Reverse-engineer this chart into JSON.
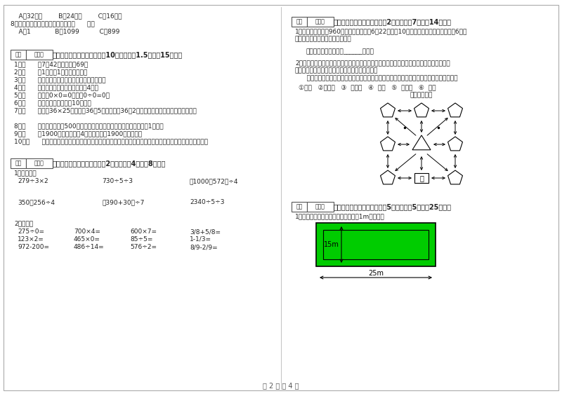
{
  "page_bg": "#ffffff",
  "page_width": 8.0,
  "page_height": 5.65,
  "left_col": {
    "top_items": [
      "    A．32厘米        B．24厘米        C．16厘米",
      "8．最小三位数和最大三位数的和是（      ）。",
      "    A．1            B．1099          C．899"
    ],
    "section3_title": "三、仔细推敲，正确判断（共10小题，每题1.5分，共15分）。",
    "section3_items": [
      "1．（      ）7个42相加的和是69。",
      "2．（      ）1吨铁与1吨棉花一样重。",
      "3．（      ）长方形的周长就是它四条边长度的和。",
      "4．（      ）正方形的周长是它的边长的4倍。",
      "5．（      ）因为0×0=0，所以0÷0=0。",
      "6．（      ）小明家客厅面积是10公顷。",
      "7．（      ）计算36×25时，先把36和5相乘，再把36和2相乘，最后把两次乘得的结果相加。",
      "8．（      ）小明家离学校500米，他每天上学、回家，一个来回一共要走1千米。",
      "9．（      ）1900年的年份数是4的倍数，所以1900年是闰年。",
      "10．（      ）用同一条铁丝先围成一个最大的正方形，再围成一个最大的长方形，长方形和正方形的周长相等。"
    ],
    "section4_title": "四、看清题目，细心计算（共2小题，每题4分，共8分）。",
    "section4_sub1": "1．脱式计算",
    "section4_calcs1": [
      "279÷3×2",
      "730÷5÷3",
      "（1000－572）÷4"
    ],
    "section4_calcs2": [
      "350－256÷4",
      "（390+30）÷7",
      "2340÷5÷3"
    ],
    "section4_sub2": "2．口算：",
    "section4_oral": [
      [
        "275÷0=",
        "700×4=",
        "600×7=",
        "3/8+5/8="
      ],
      [
        "123×2=",
        "465×0=",
        "85÷5=",
        "1-1/3="
      ],
      [
        "972-200=",
        "486÷14=",
        "576÷2=",
        "8/9-2/9="
      ]
    ]
  },
  "right_col": {
    "section5_title": "五、认真思考，综合能力（共2小题，每题7分，共14分）。",
    "section5_q1_line1": "1、甲乙两城铁路长960千米，一列客车于6月22日上午10时从甲城开往乙城，当日晚上6时到",
    "section5_q1_line2": "达。这列火车每小时行多少千米？",
    "section5_ans1": "答：这列火车每小时行______千米。",
    "section5_q2_line1": "2、走进动物园大门，正北面是狮子山和熊猫馆，狮子山的东侧是飞禽馆，四侧是猴园，大象",
    "section5_q2_line2": "馆和鱼馆的场地分别在动物园的东北角和西北角。",
    "section5_q2b": "    根据小强的描述，请你把这些动物场馆所在的位置，在动物园的导游图上用序号表示出来。",
    "section5_legend": "①狮山   ②熊猫馆   ③  飞禽馆   ④  猴园   ⑤  大象馆   ⑥  鱼馆",
    "section5_map_title": "动物园导游图",
    "section6_title": "六、活用知识，解决问题（共5小题，每题5分，共25分）。",
    "section6_q1": "1、在一块长方形的花坛四周，铺上宽1m的小路。",
    "rect_inner_color": "#00cc00",
    "rect_label_15m": "15m",
    "rect_label_25m": "25m"
  },
  "footer": "第 2 页 共 4 页",
  "score_box_label1": "得分",
  "score_box_label2": "评卷人"
}
